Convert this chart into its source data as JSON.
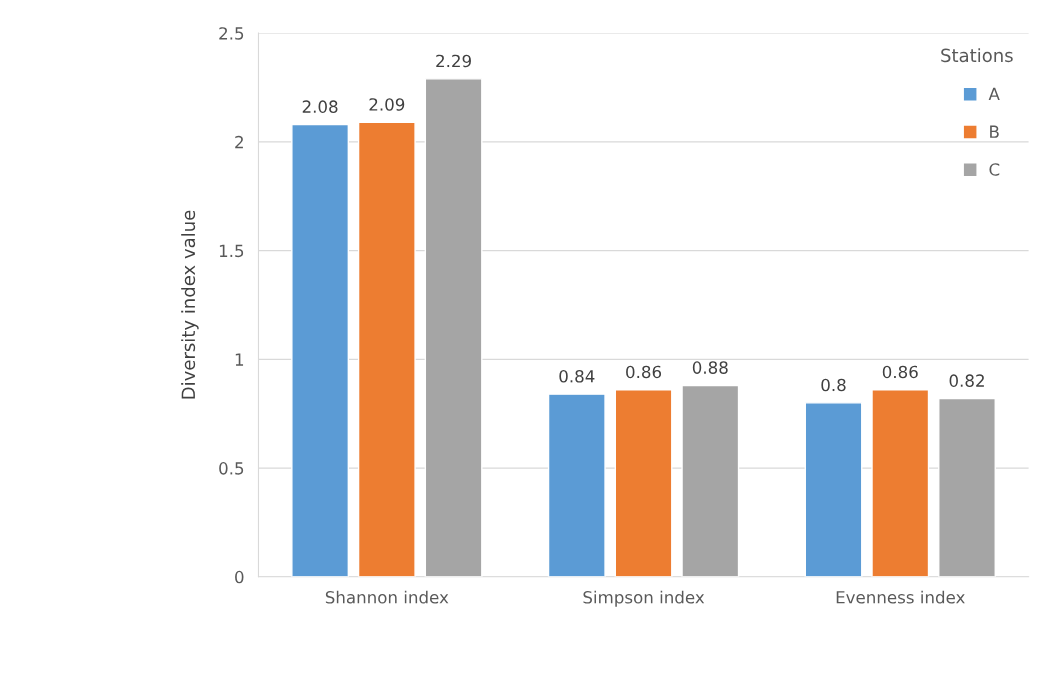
{
  "chart_data": {
    "type": "bar",
    "ylabel": "Diversity index value",
    "legend_title": "Stations",
    "categories": [
      "Shannon index",
      "Simpson index",
      "Evenness index"
    ],
    "series": [
      {
        "name": "A",
        "color": "#5b9bd5",
        "values": [
          2.08,
          0.84,
          0.8
        ]
      },
      {
        "name": "B",
        "color": "#ed7d31",
        "values": [
          2.09,
          0.86,
          0.86
        ]
      },
      {
        "name": "C",
        "color": "#a5a5a5",
        "values": [
          2.29,
          0.88,
          0.82
        ]
      }
    ],
    "ylim": [
      0,
      2.5
    ],
    "yticks": [
      0,
      0.5,
      1,
      1.5,
      2,
      2.5
    ],
    "grid": "y",
    "legend": "top right",
    "data_labels": true
  }
}
